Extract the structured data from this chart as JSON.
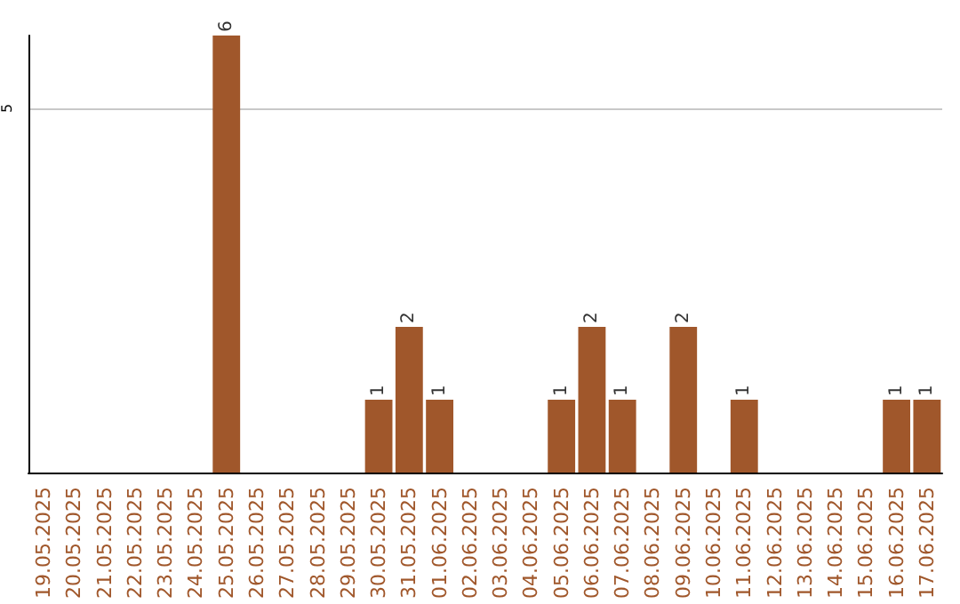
{
  "chart_data": {
    "type": "bar",
    "categories": [
      "19.05.2025",
      "20.05.2025",
      "21.05.2025",
      "22.05.2025",
      "23.05.2025",
      "24.05.2025",
      "25.05.2025",
      "26.05.2025",
      "27.05.2025",
      "28.05.2025",
      "29.05.2025",
      "30.05.2025",
      "31.05.2025",
      "01.06.2025",
      "02.06.2025",
      "03.06.2025",
      "04.06.2025",
      "05.06.2025",
      "06.06.2025",
      "07.06.2025",
      "08.06.2025",
      "09.06.2025",
      "10.06.2025",
      "11.06.2025",
      "12.06.2025",
      "13.06.2025",
      "14.06.2025",
      "15.06.2025",
      "16.06.2025",
      "17.06.2025"
    ],
    "values": [
      0,
      0,
      0,
      0,
      0,
      0,
      6,
      0,
      0,
      0,
      0,
      1,
      2,
      1,
      0,
      0,
      0,
      1,
      2,
      1,
      0,
      2,
      0,
      1,
      0,
      0,
      0,
      0,
      1,
      1
    ],
    "value_labels": [
      null,
      null,
      null,
      null,
      null,
      null,
      "6",
      null,
      null,
      null,
      null,
      "1",
      "2",
      "1",
      null,
      null,
      null,
      "1",
      "2",
      "1",
      null,
      "2",
      null,
      "1",
      null,
      null,
      null,
      null,
      "1",
      "1"
    ],
    "color": "#a0572b",
    "ylim": [
      0,
      6
    ],
    "yticks": [
      5
    ],
    "grid": "y"
  }
}
